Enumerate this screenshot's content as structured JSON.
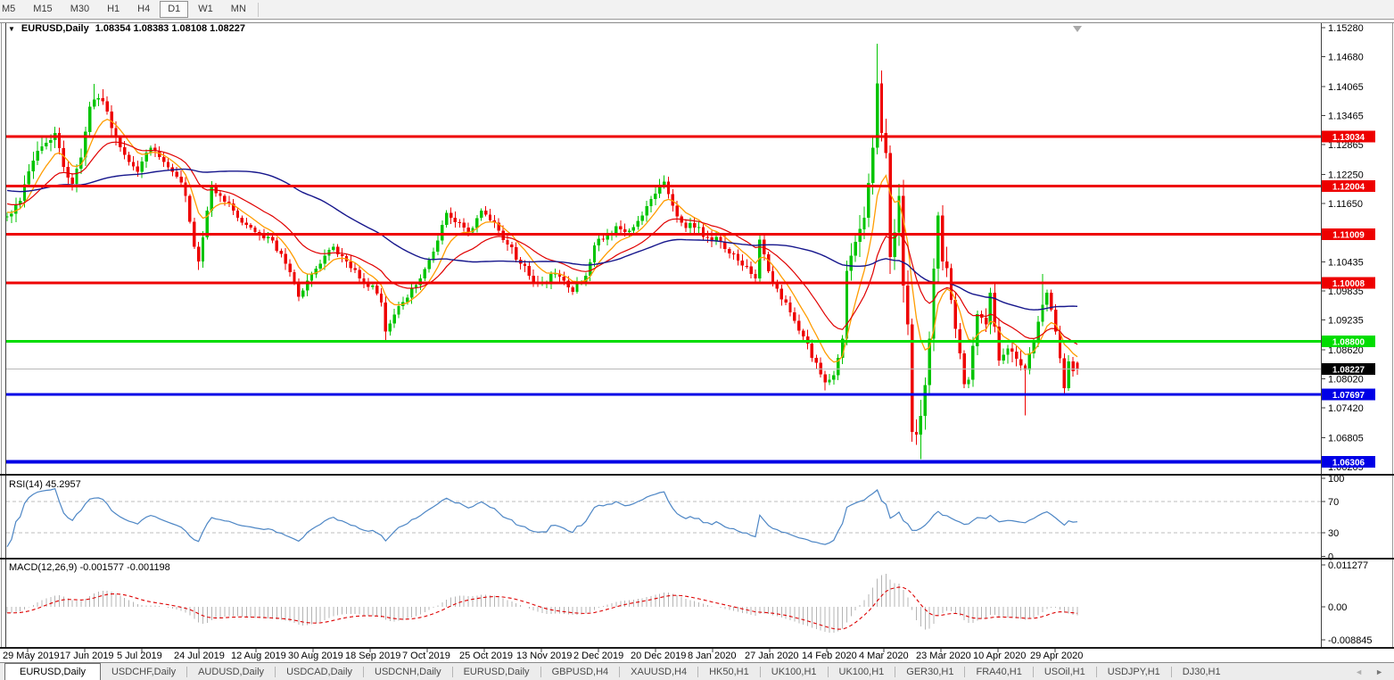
{
  "toolbar": {
    "timeframes": [
      "M5",
      "M15",
      "M30",
      "H1",
      "H4",
      "D1",
      "W1",
      "MN"
    ],
    "active": "D1"
  },
  "chart_header": {
    "dropdown_icon": "▼",
    "symbol_label": "EURUSD,Daily",
    "ohlc_text": "1.08354 1.08383 1.08108 1.08227"
  },
  "rsi_panel": {
    "label": "RSI(14) 45.2957",
    "axis_labels": [
      "100",
      "70",
      "30",
      "0"
    ]
  },
  "macd_panel": {
    "label": "MACD(12,26,9) -0.001577 -0.001198",
    "axis_labels": [
      "0.011277",
      "0.00",
      "-0.008845"
    ]
  },
  "price_scale": {
    "tick_labels": [
      "1.15280",
      "1.14680",
      "1.14065",
      "1.13465",
      "1.12865",
      "1.12250",
      "1.11650",
      "1.10435",
      "1.09835",
      "1.09235",
      "1.08620",
      "1.08020",
      "1.07420",
      "1.06805",
      "1.06205"
    ]
  },
  "tabs": {
    "items": [
      "EURUSD,Daily",
      "USDCHF,Daily",
      "AUDUSD,Daily",
      "USDCAD,Daily",
      "USDCNH,Daily",
      "EURUSD,Daily",
      "GBPUSD,H4",
      "XAUUSD,H4",
      "HK50,H1",
      "UK100,H1",
      "UK100,H1",
      "GER30,H1",
      "FRA40,H1",
      "USOil,H1",
      "USDJPY,H1",
      "DJ30,H1"
    ],
    "active_index": 0,
    "nav_left": "◄",
    "nav_right": "►"
  },
  "chart_data": {
    "type": "candlestick",
    "symbol": "EURUSD",
    "timeframe": "Daily",
    "title": "EURUSD,Daily",
    "x_axis_labels": [
      "29 May 2019",
      "17 Jun 2019",
      "5 Jul 2019",
      "24 Jul 2019",
      "12 Aug 2019",
      "30 Aug 2019",
      "18 Sep 2019",
      "7 Oct 2019",
      "25 Oct 2019",
      "13 Nov 2019",
      "2 Dec 2019",
      "20 Dec 2019",
      "8 Jan 2020",
      "27 Jan 2020",
      "14 Feb 2020",
      "4 Mar 2020",
      "23 Mar 2020",
      "10 Apr 2020",
      "29 Apr 2020"
    ],
    "y_axis": {
      "min": 1.06205,
      "max": 1.1528
    },
    "grid": false,
    "bar_count": 247,
    "up_color": "#00c400",
    "down_color": "#ee0000",
    "close_path_anchors": [
      [
        0,
        1.1138
      ],
      [
        3,
        1.117
      ],
      [
        6,
        1.1253
      ],
      [
        9,
        1.129
      ],
      [
        11,
        1.131
      ],
      [
        13,
        1.124
      ],
      [
        15,
        1.1205
      ],
      [
        17,
        1.126
      ],
      [
        19,
        1.1365
      ],
      [
        21,
        1.1382
      ],
      [
        23,
        1.1355
      ],
      [
        25,
        1.13
      ],
      [
        27,
        1.1265
      ],
      [
        30,
        1.123
      ],
      [
        33,
        1.128
      ],
      [
        36,
        1.125
      ],
      [
        39,
        1.122
      ],
      [
        41,
        1.118
      ],
      [
        43,
        1.1075
      ],
      [
        44,
        1.1045
      ],
      [
        46,
        1.115
      ],
      [
        47,
        1.12
      ],
      [
        49,
        1.118
      ],
      [
        52,
        1.115
      ],
      [
        55,
        1.112
      ],
      [
        58,
        1.11
      ],
      [
        61,
        1.1088
      ],
      [
        63,
        1.106
      ],
      [
        64,
        1.104
      ],
      [
        66,
        1.1
      ],
      [
        67,
        1.0972
      ],
      [
        69,
        1.1005
      ],
      [
        72,
        1.104
      ],
      [
        75,
        1.1075
      ],
      [
        78,
        1.1045
      ],
      [
        81,
        1.101
      ],
      [
        84,
        1.0995
      ],
      [
        86,
        1.096
      ],
      [
        87,
        1.09
      ],
      [
        89,
        1.0935
      ],
      [
        92,
        1.097
      ],
      [
        95,
        1.101
      ],
      [
        98,
        1.1065
      ],
      [
        101,
        1.1145
      ],
      [
        104,
        1.1125
      ],
      [
        106,
        1.1105
      ],
      [
        109,
        1.115
      ],
      [
        112,
        1.1125
      ],
      [
        115,
        1.108
      ],
      [
        118,
        1.104
      ],
      [
        120,
        1.1015
      ],
      [
        123,
        1.1
      ],
      [
        126,
        1.102
      ],
      [
        128,
        1.1005
      ],
      [
        130,
        1.0982
      ],
      [
        133,
        1.1015
      ],
      [
        135,
        1.1078
      ],
      [
        138,
        1.11
      ],
      [
        140,
        1.1118
      ],
      [
        143,
        1.1108
      ],
      [
        146,
        1.114
      ],
      [
        149,
        1.1185
      ],
      [
        151,
        1.121
      ],
      [
        153,
        1.116
      ],
      [
        155,
        1.1125
      ],
      [
        158,
        1.1115
      ],
      [
        161,
        1.1095
      ],
      [
        164,
        1.1085
      ],
      [
        167,
        1.106
      ],
      [
        170,
        1.1035
      ],
      [
        172,
        1.101
      ],
      [
        173,
        1.109
      ],
      [
        176,
        1.1
      ],
      [
        180,
        1.094
      ],
      [
        183,
        1.089
      ],
      [
        186,
        1.0835
      ],
      [
        188,
        1.0795
      ],
      [
        190,
        1.081
      ],
      [
        192,
        1.0885
      ],
      [
        193,
        1.1025
      ],
      [
        195,
        1.1085
      ],
      [
        197,
        1.1135
      ],
      [
        199,
        1.128
      ],
      [
        200,
        1.1413
      ],
      [
        201,
        1.131
      ],
      [
        202,
        1.1269
      ],
      [
        203,
        1.1054
      ],
      [
        204,
        1.1105
      ],
      [
        205,
        1.118
      ],
      [
        206,
        1.0995
      ],
      [
        207,
        1.0915
      ],
      [
        208,
        1.0692
      ],
      [
        209,
        1.0687
      ],
      [
        210,
        1.0726
      ],
      [
        211,
        1.0789
      ],
      [
        212,
        1.0885
      ],
      [
        213,
        1.103
      ],
      [
        214,
        1.114
      ],
      [
        215,
        1.1045
      ],
      [
        216,
        1.1031
      ],
      [
        217,
        1.0965
      ],
      [
        218,
        1.0905
      ],
      [
        219,
        1.0855
      ],
      [
        220,
        1.0791
      ],
      [
        221,
        1.08
      ],
      [
        222,
        1.087
      ],
      [
        223,
        1.0936
      ],
      [
        225,
        1.0915
      ],
      [
        226,
        1.098
      ],
      [
        227,
        1.091
      ],
      [
        228,
        1.084
      ],
      [
        230,
        1.0865
      ],
      [
        231,
        1.0858
      ],
      [
        233,
        1.083
      ],
      [
        234,
        1.0821
      ],
      [
        235,
        1.0855
      ],
      [
        236,
        1.088
      ],
      [
        237,
        1.092
      ],
      [
        238,
        1.0955
      ],
      [
        239,
        1.098
      ],
      [
        240,
        1.0945
      ],
      [
        241,
        1.09
      ],
      [
        242,
        1.0845
      ],
      [
        243,
        1.0783
      ],
      [
        244,
        1.0838
      ],
      [
        245,
        1.0818
      ],
      [
        246,
        1.08227
      ]
    ],
    "wick_overrides": {
      "20": {
        "h": 1.1412
      },
      "44": {
        "l": 1.1027
      },
      "67": {
        "l": 1.0963
      },
      "87": {
        "l": 1.0879
      },
      "188": {
        "l": 1.0778
      },
      "200": {
        "h": 1.1495
      },
      "210": {
        "l": 1.0636
      },
      "214": {
        "h": 1.1147
      },
      "226": {
        "h": 1.099
      },
      "234": {
        "l": 1.0727
      },
      "238": {
        "h": 1.1019
      },
      "243": {
        "l": 1.0767
      }
    },
    "last_candle": {
      "open": 1.08354,
      "high": 1.08383,
      "low": 1.08108,
      "close": 1.08227
    },
    "moving_averages": [
      {
        "name": "fast",
        "period": 8,
        "method": "ema",
        "color": "#ff9c00"
      },
      {
        "name": "medium",
        "period": 21,
        "method": "ema",
        "color": "#e00000"
      },
      {
        "name": "slow",
        "period": 55,
        "method": "sma",
        "color": "#16168c"
      }
    ],
    "horizontal_levels": [
      {
        "label": "1.13034",
        "price": 1.13034,
        "color": "#ee0000",
        "width": 3
      },
      {
        "label": "1.12004",
        "price": 1.12004,
        "color": "#ee0000",
        "width": 3
      },
      {
        "label": "1.11009",
        "price": 1.11009,
        "color": "#ee0000",
        "width": 3
      },
      {
        "label": "1.10008",
        "price": 1.10008,
        "color": "#ee0000",
        "width": 3
      },
      {
        "label": "1.08800",
        "price": 1.088,
        "color": "#00dd00",
        "width": 3
      },
      {
        "label": "1.07697",
        "price": 1.07697,
        "color": "#0000e6",
        "width": 3
      },
      {
        "label": "1.06306",
        "price": 1.06306,
        "color": "#0000e6",
        "width": 4
      }
    ],
    "current_price": {
      "value": 1.08227,
      "label": "1.08227",
      "line_color": "#b8b8b8",
      "badge_color": "#000000"
    },
    "indicators": [
      {
        "name": "RSI",
        "params": [
          14
        ],
        "current": 45.2957,
        "levels": [
          100,
          70,
          30,
          0
        ],
        "line_color": "#4d86c5"
      },
      {
        "name": "MACD",
        "params": [
          12,
          26,
          9
        ],
        "current_macd": -0.001577,
        "current_signal": -0.001198,
        "axis_max": 0.011277,
        "axis_min": -0.008845,
        "histogram_color": "#b4b4b4",
        "signal_color": "#dd0000"
      }
    ]
  }
}
